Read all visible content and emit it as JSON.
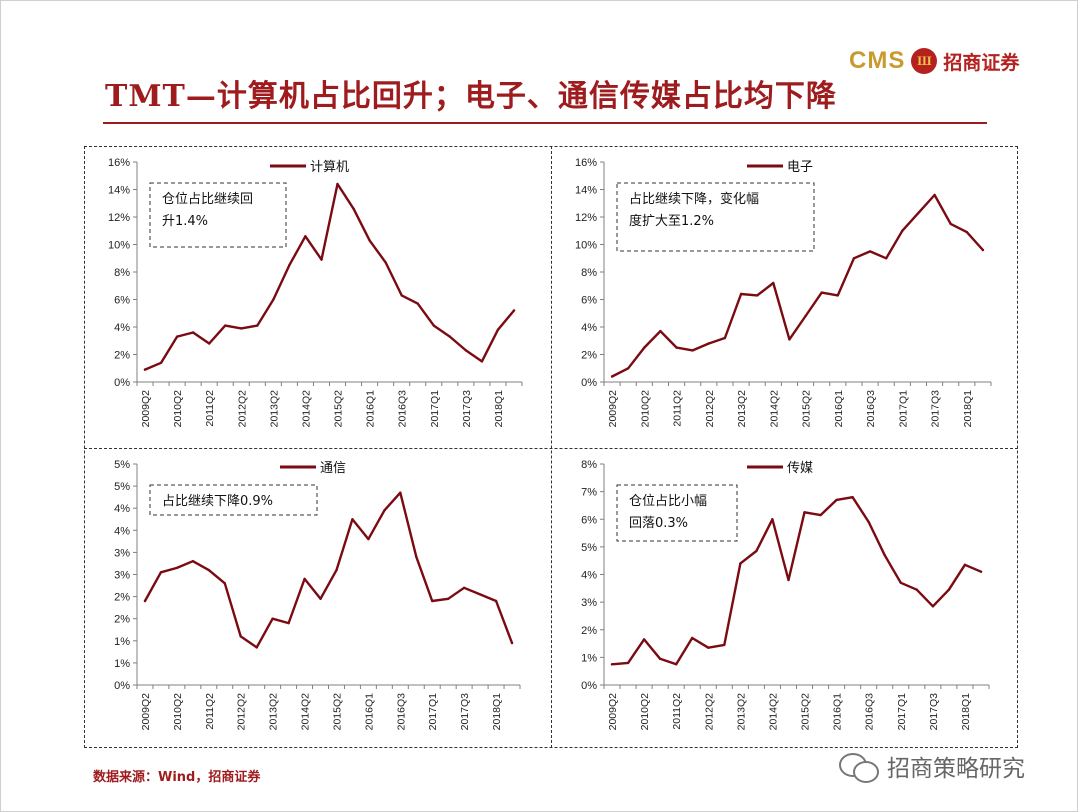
{
  "header": {
    "title": "TMT—计算机占比回升；电子、通信传媒占比均下降",
    "logo_latin": "CMS",
    "logo_mark": "Ш",
    "logo_cn": "招商证券"
  },
  "footer": {
    "source": "数据来源：Wind，招商证券",
    "watermark": "招商策略研究"
  },
  "colors": {
    "line": "#7b0b12",
    "accent": "#9e1b1e",
    "axis": "#808080"
  },
  "chart_data": [
    {
      "type": "line",
      "legend": "计算机",
      "annotation": [
        "仓位占比继续回",
        "升1.4%"
      ],
      "y_ticks": [
        "0%",
        "2%",
        "4%",
        "6%",
        "8%",
        "10%",
        "12%",
        "14%",
        "16%"
      ],
      "ylim": [
        0,
        16
      ],
      "x_tick_labels": [
        "2009Q2",
        "2010Q2",
        "2011Q2",
        "2012Q2",
        "2013Q2",
        "2014Q2",
        "2015Q2",
        "2016Q1",
        "2016Q3",
        "2017Q1",
        "2017Q3",
        "2018Q1"
      ],
      "values": [
        0.9,
        1.4,
        3.3,
        3.6,
        2.8,
        4.1,
        3.9,
        4.1,
        6.0,
        8.5,
        10.6,
        8.9,
        14.4,
        12.6,
        10.3,
        8.7,
        6.3,
        5.7,
        4.1,
        3.3,
        2.3,
        1.5,
        3.8,
        5.2
      ]
    },
    {
      "type": "line",
      "legend": "电子",
      "annotation": [
        "占比继续下降，变化幅",
        "度扩大至1.2%"
      ],
      "y_ticks": [
        "0%",
        "2%",
        "4%",
        "6%",
        "8%",
        "10%",
        "12%",
        "14%",
        "16%"
      ],
      "ylim": [
        0,
        16
      ],
      "x_tick_labels": [
        "2009Q2",
        "2010Q2",
        "2011Q2",
        "2012Q2",
        "2013Q2",
        "2014Q2",
        "2015Q2",
        "2016Q1",
        "2016Q3",
        "2017Q1",
        "2017Q3",
        "2018Q1"
      ],
      "values": [
        0.4,
        1.0,
        2.5,
        3.7,
        2.5,
        2.3,
        2.8,
        3.2,
        6.4,
        6.3,
        7.2,
        3.1,
        4.8,
        6.5,
        6.3,
        9.0,
        9.5,
        9.0,
        11.0,
        12.3,
        13.6,
        11.5,
        10.9,
        9.6
      ]
    },
    {
      "type": "line",
      "legend": "通信",
      "annotation": [
        "占比继续下降0.9%"
      ],
      "y_ticks": [
        "0%",
        "1%",
        "1%",
        "2%",
        "2%",
        "3%",
        "3%",
        "4%",
        "4%",
        "5%",
        "5%"
      ],
      "ylim": [
        0,
        5
      ],
      "x_tick_labels": [
        "2009Q2",
        "2010Q2",
        "2011Q2",
        "2012Q2",
        "2013Q2",
        "2014Q2",
        "2015Q2",
        "2016Q1",
        "2016Q3",
        "2017Q1",
        "2017Q3",
        "2018Q1"
      ],
      "values": [
        1.9,
        2.55,
        2.65,
        2.8,
        2.6,
        2.3,
        1.1,
        0.85,
        1.5,
        1.4,
        2.4,
        1.95,
        2.6,
        3.75,
        3.3,
        3.95,
        4.35,
        2.9,
        1.9,
        1.95,
        2.2,
        2.05,
        1.9,
        0.95
      ]
    },
    {
      "type": "line",
      "legend": "传媒",
      "annotation": [
        "仓位占比小幅",
        "回落0.3%"
      ],
      "y_ticks": [
        "0%",
        "1%",
        "2%",
        "3%",
        "4%",
        "5%",
        "6%",
        "7%",
        "8%"
      ],
      "ylim": [
        0,
        8
      ],
      "x_tick_labels": [
        "2009Q2",
        "2010Q2",
        "2011Q2",
        "2012Q2",
        "2013Q2",
        "2014Q2",
        "2015Q2",
        "2016Q1",
        "2016Q3",
        "2017Q1",
        "2017Q3",
        "2018Q1"
      ],
      "values": [
        0.75,
        0.8,
        1.65,
        0.95,
        0.75,
        1.7,
        1.35,
        1.45,
        4.4,
        4.85,
        6.0,
        3.8,
        6.25,
        6.15,
        6.7,
        6.8,
        5.9,
        4.7,
        3.7,
        3.45,
        2.85,
        3.45,
        4.35,
        4.1
      ]
    }
  ]
}
